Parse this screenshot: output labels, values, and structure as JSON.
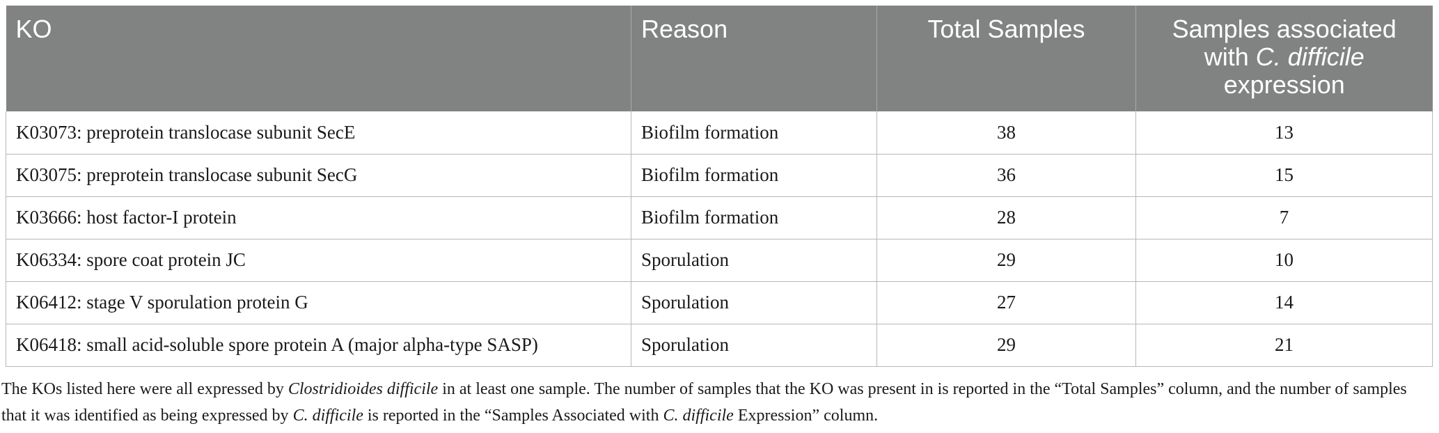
{
  "table": {
    "headers": {
      "ko": "KO",
      "reason": "Reason",
      "total_samples": "Total Samples",
      "assoc_line1": "Samples associated",
      "assoc_prefix": "with ",
      "assoc_italic": "C. difficile",
      "assoc_line3": "expression"
    },
    "rows": [
      {
        "ko": "K03073: preprotein translocase subunit SecE",
        "reason": "Biofilm formation",
        "total": "38",
        "assoc": "13"
      },
      {
        "ko": "K03075: preprotein translocase subunit SecG",
        "reason": "Biofilm formation",
        "total": "36",
        "assoc": "15"
      },
      {
        "ko": "K03666: host factor-I protein",
        "reason": "Biofilm formation",
        "total": "28",
        "assoc": "7"
      },
      {
        "ko": "K06334: spore coat protein JC",
        "reason": "Sporulation",
        "total": "29",
        "assoc": "10"
      },
      {
        "ko": "K06412: stage V sporulation protein G",
        "reason": "Sporulation",
        "total": "27",
        "assoc": "14"
      },
      {
        "ko": "K06418: small acid-soluble spore protein A (major alpha-type SASP)",
        "reason": "Sporulation",
        "total": "29",
        "assoc": "21"
      }
    ]
  },
  "caption": {
    "part1": "The KOs listed here were all expressed by ",
    "italic1": "Clostridioides difficile",
    "part2": " in at least one sample. The number of samples that the KO was present in is reported in the “Total Samples” column, and the number of samples that it was identified as being expressed by ",
    "italic2": "C. difficile",
    "part3": " is reported in the “Samples Associated with ",
    "italic3": "C. difficile",
    "part4": " Expression” column."
  }
}
